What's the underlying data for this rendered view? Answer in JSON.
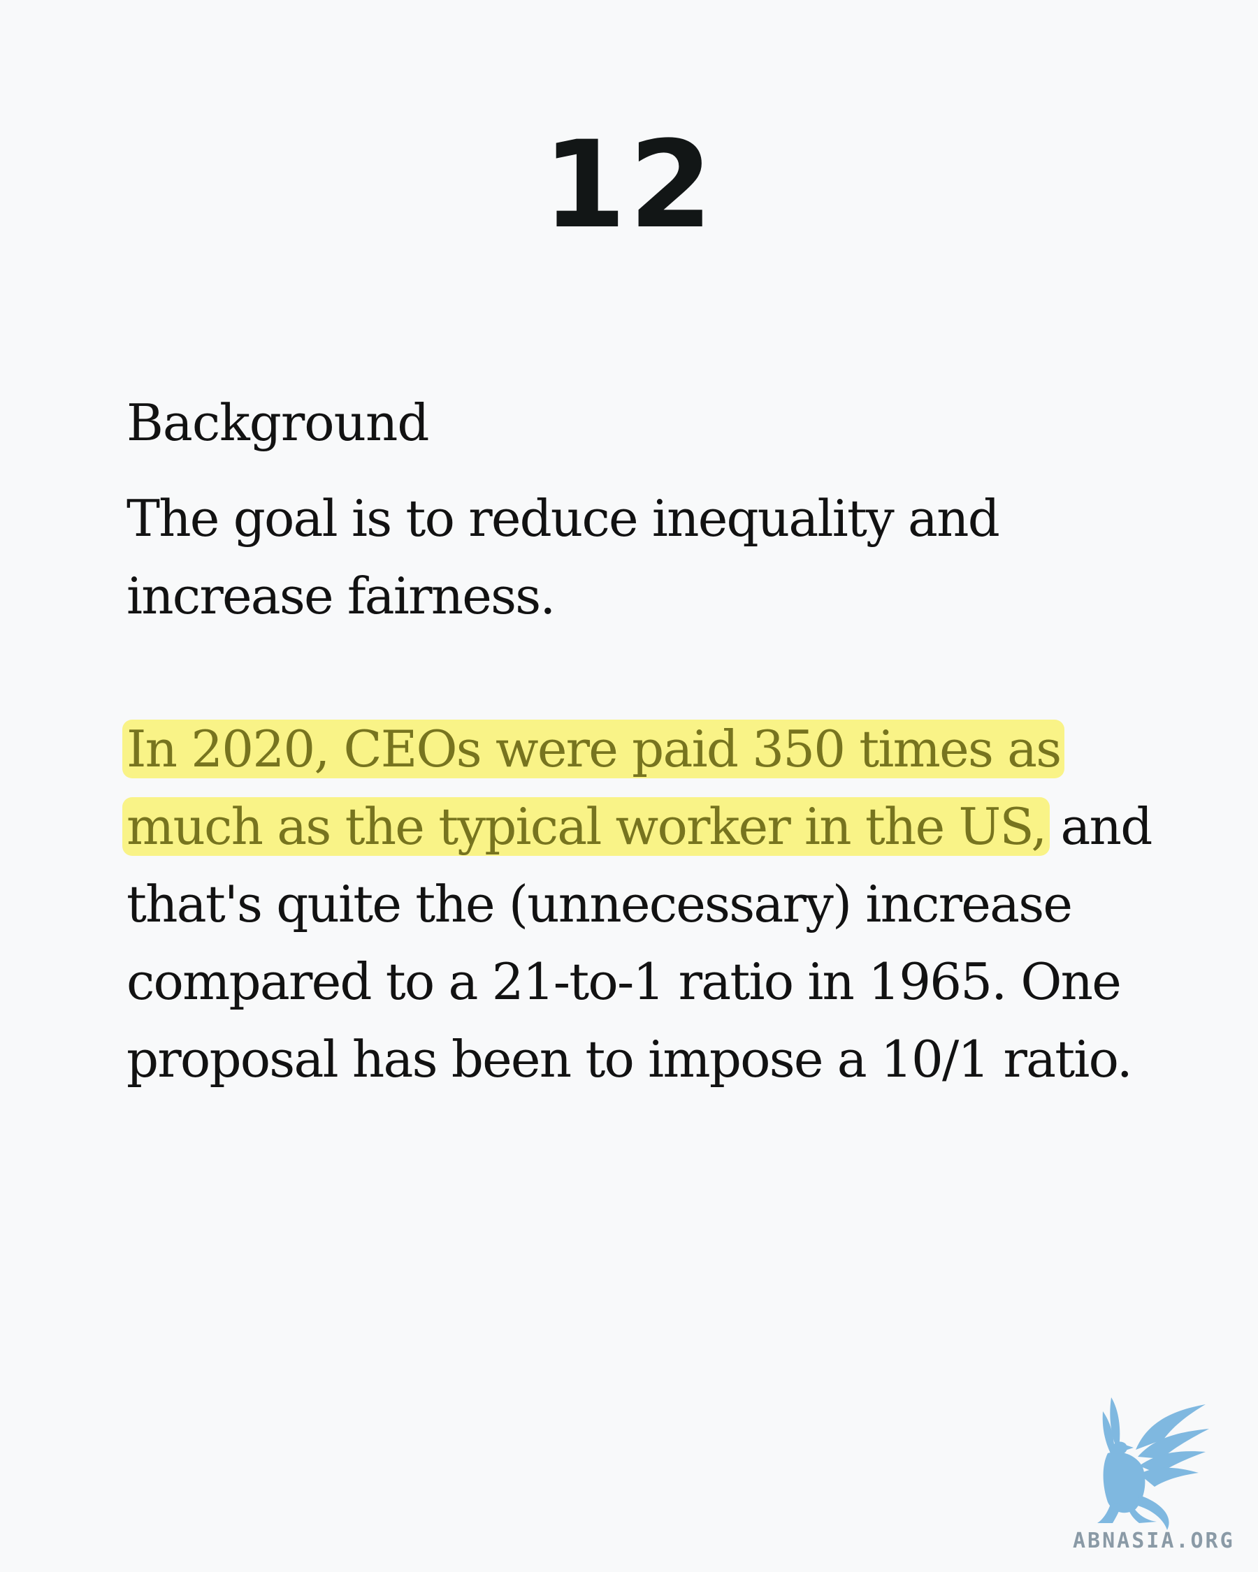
{
  "page_number": "12",
  "heading": "Background",
  "paragraphs": {
    "goal": "The goal is to reduce inequality and increase fairness.",
    "ratio_highlight": "In 2020, CEOs were paid 350 times as much as the typical worker in the US,",
    "ratio_rest": " and that's quite the (unnecessary) increase compared to a 21-to-1 ratio in 1965. One proposal has been to impose a 10/1 ratio."
  },
  "highlight_color": "#f7ee5c",
  "logo": {
    "text": "ABNASIA.ORG",
    "icon": "griffin-logo-icon",
    "color": "#7fb8e0"
  }
}
